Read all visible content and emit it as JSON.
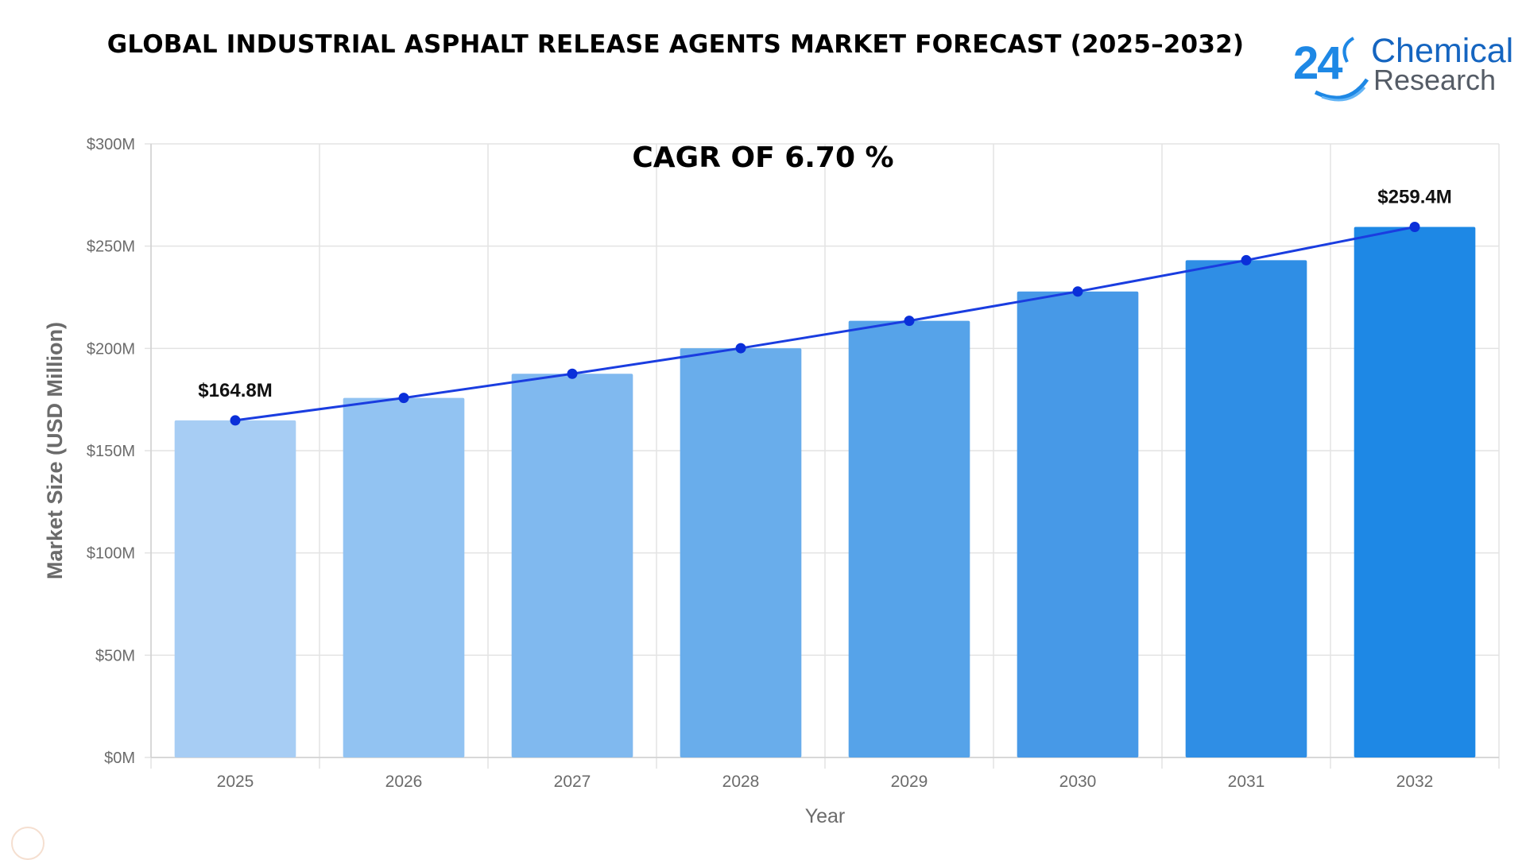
{
  "page": {
    "title": "GLOBAL INDUSTRIAL ASPHALT RELEASE AGENTS MARKET FORECAST (2025–2032)",
    "logo": {
      "number": "24",
      "line1": "Chemical",
      "line2": "Research"
    },
    "cagr_label": "CAGR OF 6.70 %"
  },
  "chart_data": {
    "type": "bar",
    "title": "GLOBAL INDUSTRIAL ASPHALT RELEASE AGENTS MARKET FORECAST (2025–2032)",
    "xlabel": "Year",
    "ylabel": "Market Size (USD Million)",
    "categories": [
      "2025",
      "2026",
      "2027",
      "2028",
      "2029",
      "2030",
      "2031",
      "2032"
    ],
    "values": [
      164.8,
      175.8,
      187.6,
      200.1,
      213.5,
      227.8,
      243.1,
      259.4
    ],
    "ylim": [
      0,
      300
    ],
    "yticks": [
      0,
      50,
      100,
      150,
      200,
      250,
      300
    ],
    "ytick_labels": [
      "$0M",
      "$50M",
      "$100M",
      "$150M",
      "$200M",
      "$250M",
      "$300M"
    ],
    "annotations": [
      {
        "category": "2025",
        "text": "$164.8M"
      },
      {
        "category": "2032",
        "text": "$259.4M"
      }
    ],
    "trend_line": true,
    "grid": true,
    "bar_colors": [
      "#a7cdf4",
      "#92c3f2",
      "#80b9ef",
      "#69adeb",
      "#56a3e9",
      "#4799e7",
      "#2f8ee5",
      "#1e88e5"
    ],
    "line_color": "#1a3de0",
    "marker_color": "#0a2fd9"
  }
}
